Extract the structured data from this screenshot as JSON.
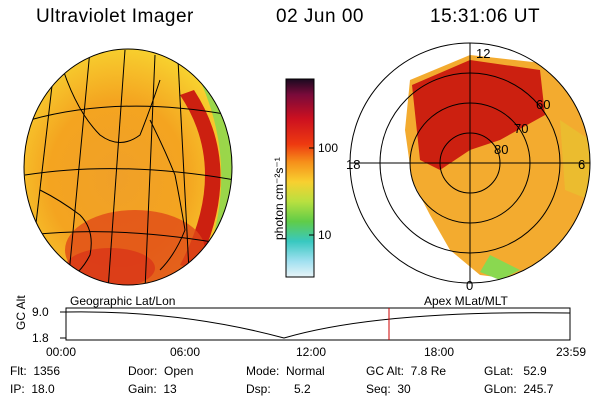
{
  "header": {
    "title": "Ultraviolet Imager",
    "date": "02 Jun 00",
    "time": "15:31:06 UT"
  },
  "colorbar": {
    "label": "photon cm⁻²s⁻¹",
    "ticks": [
      "100",
      "10"
    ]
  },
  "polar_plot": {
    "mlt_labels": [
      "12",
      "18",
      "6",
      "0"
    ],
    "lat_labels": [
      "60",
      "70",
      "80"
    ]
  },
  "panel_labels": {
    "left": "Geographic Lat/Lon",
    "right": "Apex MLat/MLT"
  },
  "altitude_plot": {
    "ylabel": "GC Alt",
    "yticks": [
      "9.0",
      "1.8"
    ],
    "xticks": [
      "00:00",
      "06:00",
      "12:00",
      "18:00",
      "23:59"
    ]
  },
  "info": {
    "flt": "Flt:  1356",
    "ip": "IP:  18.0",
    "door": "Door:  Open",
    "gain": "Gain:  13",
    "mode": "Mode:  Normal",
    "dsp": "Dsp:       5.2",
    "gcalt": "GC Alt:  7.8 Re",
    "seq": "Seq:  30",
    "glat": "GLat:   52.9",
    "glon": "GLon:  245.7"
  },
  "colors": {
    "accent_red": "#cc0000",
    "orange": "#f6a21c",
    "yellow": "#f8d830",
    "green": "#7cd24a",
    "cyan": "#38c8c8"
  }
}
